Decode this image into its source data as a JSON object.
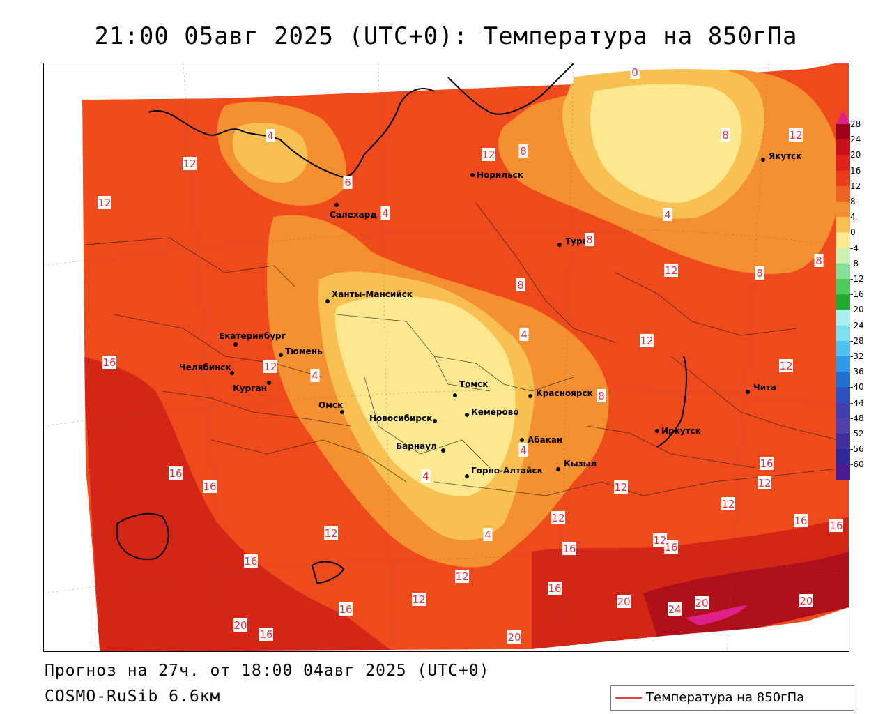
{
  "title": "21:00 05авг 2025 (UTC+0): Температура на 850гПа",
  "footer": {
    "forecast": "Прогноз на 27ч. от 18:00 04авг 2025 (UTC+0)",
    "model": "COSMO-RuSib 6.6км"
  },
  "legend": {
    "label": "Температура на 850гПа",
    "line_color": "#e8403c"
  },
  "color_scale": {
    "labels": [
      "28",
      "24",
      "20",
      "16",
      "12",
      "8",
      "4",
      "0",
      "-4",
      "-8",
      "-12",
      "-16",
      "-20",
      "-24",
      "-28",
      "-32",
      "-36",
      "-40",
      "-44",
      "-48",
      "-52",
      "-56",
      "-60"
    ],
    "colors": [
      "#a0001a",
      "#c8101a",
      "#e0201a",
      "#ea3c1a",
      "#f06220",
      "#f49030",
      "#f8c050",
      "#fde890",
      "#ccf0b0",
      "#88e098",
      "#50c860",
      "#20a830",
      "#a8f0f0",
      "#80e0f0",
      "#50c0f0",
      "#3098e8",
      "#2070d0",
      "#3050c0",
      "#4040b0",
      "#5040a8",
      "#4030a0",
      "#302898",
      "#4a1a90"
    ],
    "top_color": "#e0208a",
    "bottom_color": "#7a20b0"
  },
  "cities": [
    {
      "name": "Норильск"
    },
    {
      "name": "Якутск"
    },
    {
      "name": "Салехард"
    },
    {
      "name": "Тура"
    },
    {
      "name": "Ханты-Мансийск"
    },
    {
      "name": "Екатеринбург"
    },
    {
      "name": "Тюмень"
    },
    {
      "name": "Челябинск"
    },
    {
      "name": "Курган"
    },
    {
      "name": "Омск"
    },
    {
      "name": "Томск"
    },
    {
      "name": "Красноярск"
    },
    {
      "name": "Новосибирск"
    },
    {
      "name": "Кемерово"
    },
    {
      "name": "Абакан"
    },
    {
      "name": "Иркутск"
    },
    {
      "name": "Чита"
    },
    {
      "name": "Барнаул"
    },
    {
      "name": "Горно-Алтайск"
    },
    {
      "name": "Кызыл"
    }
  ],
  "isotherm_labels": [
    {
      "value": "0"
    },
    {
      "value": "4"
    },
    {
      "value": "6"
    },
    {
      "value": "8"
    },
    {
      "value": "8"
    },
    {
      "value": "8"
    },
    {
      "value": "8"
    },
    {
      "value": "8"
    },
    {
      "value": "8"
    },
    {
      "value": "8"
    },
    {
      "value": "12"
    },
    {
      "value": "12"
    },
    {
      "value": "12"
    },
    {
      "value": "12"
    },
    {
      "value": "12"
    },
    {
      "value": "12"
    },
    {
      "value": "12"
    },
    {
      "value": "12"
    },
    {
      "value": "12"
    },
    {
      "value": "12"
    },
    {
      "value": "12"
    },
    {
      "value": "12"
    },
    {
      "value": "12"
    },
    {
      "value": "12"
    },
    {
      "value": "12"
    },
    {
      "value": "12"
    },
    {
      "value": "4"
    },
    {
      "value": "4"
    },
    {
      "value": "4"
    },
    {
      "value": "4"
    },
    {
      "value": "4"
    },
    {
      "value": "4"
    },
    {
      "value": "4"
    },
    {
      "value": "16"
    },
    {
      "value": "16"
    },
    {
      "value": "16"
    },
    {
      "value": "16"
    },
    {
      "value": "16"
    },
    {
      "value": "16"
    },
    {
      "value": "16"
    },
    {
      "value": "16"
    },
    {
      "value": "16"
    },
    {
      "value": "16"
    },
    {
      "value": "16"
    },
    {
      "value": "16"
    },
    {
      "value": "20"
    },
    {
      "value": "20"
    },
    {
      "value": "20"
    },
    {
      "value": "20"
    },
    {
      "value": "20"
    },
    {
      "value": "24"
    }
  ]
}
